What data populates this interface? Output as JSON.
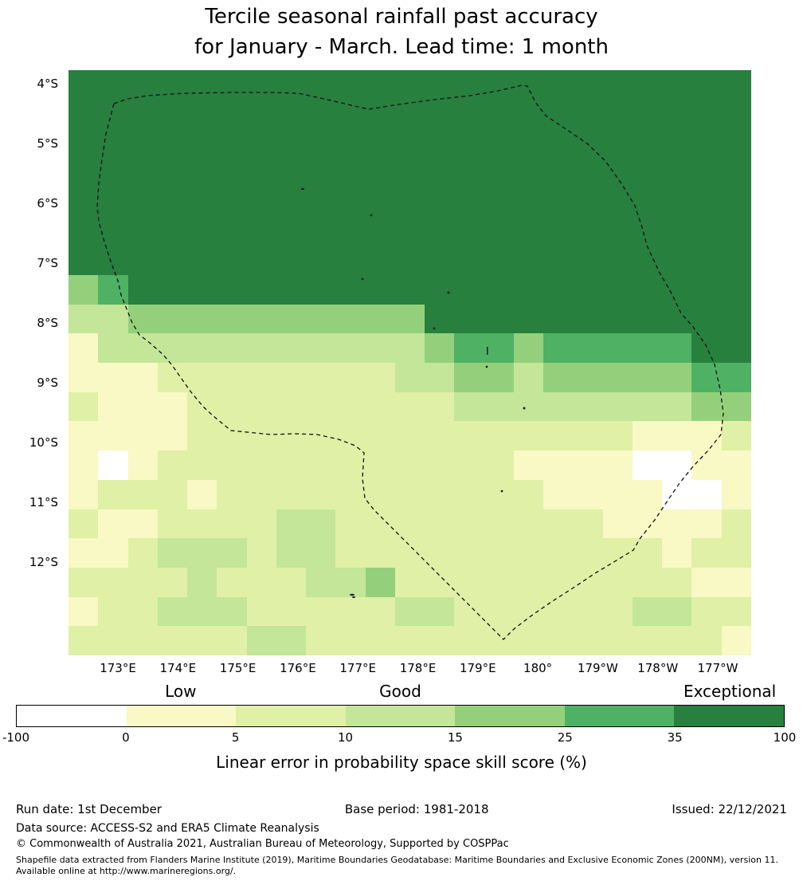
{
  "title": {
    "line1": "Tercile seasonal rainfall past accuracy",
    "line2": "for January - March. Lead time: 1 month"
  },
  "chart_data": {
    "type": "heatmap",
    "description": "Gridded map of seasonal rainfall forecast skill over the Tuvalu region with dashed EEZ boundary overlay",
    "x_ticks": [
      "173°E",
      "174°E",
      "175°E",
      "176°E",
      "177°E",
      "178°E",
      "179°E",
      "180°",
      "179°W",
      "178°W",
      "177°W"
    ],
    "y_ticks": [
      "4°S",
      "5°S",
      "6°S",
      "7°S",
      "8°S",
      "9°S",
      "10°S",
      "11°S",
      "12°S"
    ],
    "value_bins": [
      -100,
      0,
      5,
      10,
      15,
      25,
      35,
      100
    ],
    "bin_labels": [
      "<0",
      "0-5",
      "5-10",
      "10-15",
      "15-25",
      "25-35",
      "35-100"
    ],
    "palette": [
      "#ffffff",
      "#f8f9c4",
      "#e0f0a6",
      "#c3e698",
      "#94d07c",
      "#4fb163",
      "#27803e"
    ],
    "grid_note": "Each digit is a palette/bin index; rows run north (4S) to south (13.5S), columns west (172E) to east (176.5W)",
    "grid": [
      "66666666666666666666666",
      "66666666666666666666666",
      "66666666666666666666666",
      "66666666666666666666666",
      "66666666666666666666666",
      "66666666666666666666666",
      "66666666666666666666666",
      "45666666666666666666666",
      "33444444444466666666666",
      "13333333333345545555566",
      "11122222222334434444455",
      "21112222222223333333344",
      "11112222222222222221112",
      "10122222222222211110011",
      "12221222222222221111001",
      "21122223322222222211112",
      "11233323322222222222122",
      "22223222334222222222211",
      "12233322222332222223322",
      "22222233222222222222221"
    ],
    "overlay": "Tuvalu Exclusive Economic Zone dashed outline with small island markers"
  },
  "colorbar": {
    "qual_labels": [
      "Low",
      "Good",
      "Exceptional"
    ],
    "ticks": [
      "-100",
      "0",
      "5",
      "10",
      "15",
      "25",
      "35",
      "100"
    ],
    "axis_label": "Linear error in probability space skill score (%)"
  },
  "footer": {
    "run_date": "Run date: 1st December",
    "base_period": "Base period: 1981-2018",
    "issued": "Issued: 22/12/2021",
    "data_source": "Data source: ACCESS-S2 and ERA5 Climate Reanalysis",
    "copyright": "© Commonwealth of Australia 2021, Australian Bureau of Meteorology, Supported by COSPPac",
    "shapefile_note": "Shapefile data extracted from Flanders Marine Institute (2019), Maritime Boundaries Geodatabase: Maritime Boundaries and Exclusive Economic Zones (200NM), version 11. Available online at http://www.marineregions.org/."
  }
}
